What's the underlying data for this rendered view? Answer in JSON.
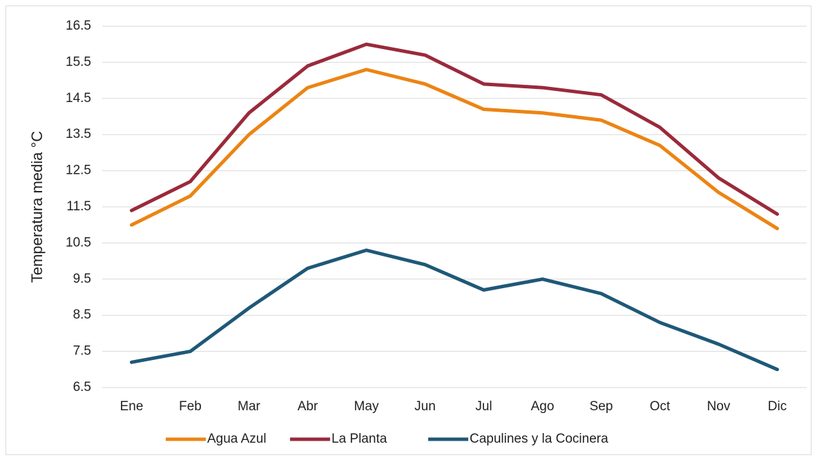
{
  "chart_data": {
    "type": "line",
    "y_label": "Temperatura media °C",
    "categories": [
      "Ene",
      "Feb",
      "Mar",
      "Abr",
      "May",
      "Jun",
      "Jul",
      "Ago",
      "Sep",
      "Oct",
      "Nov",
      "Dic"
    ],
    "series": [
      {
        "name": "Agua Azul",
        "color": "#ec8414",
        "values": [
          11.0,
          11.8,
          13.5,
          14.8,
          15.3,
          14.9,
          14.2,
          14.1,
          13.9,
          13.2,
          11.9,
          10.9
        ]
      },
      {
        "name": "La Planta",
        "color": "#9a2a3b",
        "values": [
          11.4,
          12.2,
          14.1,
          15.4,
          16.0,
          15.7,
          14.9,
          14.8,
          14.6,
          13.7,
          12.3,
          11.3
        ]
      },
      {
        "name": "Capulines y la Cocinera",
        "color": "#1f5878",
        "values": [
          7.2,
          7.5,
          8.7,
          9.8,
          10.3,
          9.9,
          9.2,
          9.5,
          9.1,
          8.3,
          7.7,
          7.0
        ]
      }
    ],
    "ylim": [
      6.5,
      16.5
    ],
    "yticks": [
      6.5,
      7.5,
      8.5,
      9.5,
      10.5,
      11.5,
      12.5,
      13.5,
      14.5,
      15.5,
      16.5
    ],
    "grid": true,
    "legend": "bottom"
  }
}
